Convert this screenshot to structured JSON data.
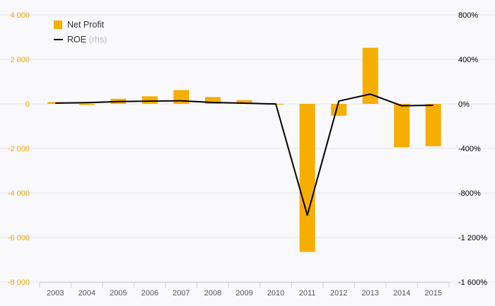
{
  "chart_data": {
    "type": "bar",
    "categories": [
      "2003",
      "2004",
      "2005",
      "2006",
      "2007",
      "2008",
      "2009",
      "2010",
      "2011",
      "2012",
      "2013",
      "2014",
      "2015"
    ],
    "series": [
      {
        "name": "Net Profit",
        "type": "bar",
        "axis": "left",
        "color": "#f6ae00",
        "values": [
          80,
          -50,
          230,
          340,
          620,
          310,
          170,
          -30,
          -6650,
          -530,
          2520,
          -1950,
          -1900
        ]
      },
      {
        "name": "ROE",
        "type": "line",
        "axis": "right",
        "color": "#000000",
        "values": [
          7,
          11,
          21,
          25,
          28,
          13,
          6,
          -1,
          -1000,
          25,
          88,
          -17,
          -13
        ]
      }
    ],
    "legend": [
      {
        "label": "Net Profit",
        "note": ""
      },
      {
        "label": "ROE",
        "note": "(rhs)"
      }
    ],
    "legend_position": "top-left",
    "y_left": {
      "ylim": [
        -8000,
        4000
      ],
      "ticks": [
        4000,
        2000,
        0,
        -2000,
        -4000,
        -6000,
        -8000
      ],
      "tick_labels": [
        "4 000",
        "2 000",
        "0",
        "-2 000",
        "-4 000",
        "-6 000",
        "-8 000"
      ],
      "color": "#f2a900"
    },
    "y_right": {
      "ylim": [
        -1600,
        800
      ],
      "ticks": [
        800,
        400,
        0,
        -400,
        -800,
        -1200,
        -1600
      ],
      "tick_labels": [
        "800%",
        "400%",
        "0%",
        "-400%",
        "-800%",
        "-1 200%",
        "-1 600%"
      ],
      "unit": "%"
    },
    "grid": true
  }
}
